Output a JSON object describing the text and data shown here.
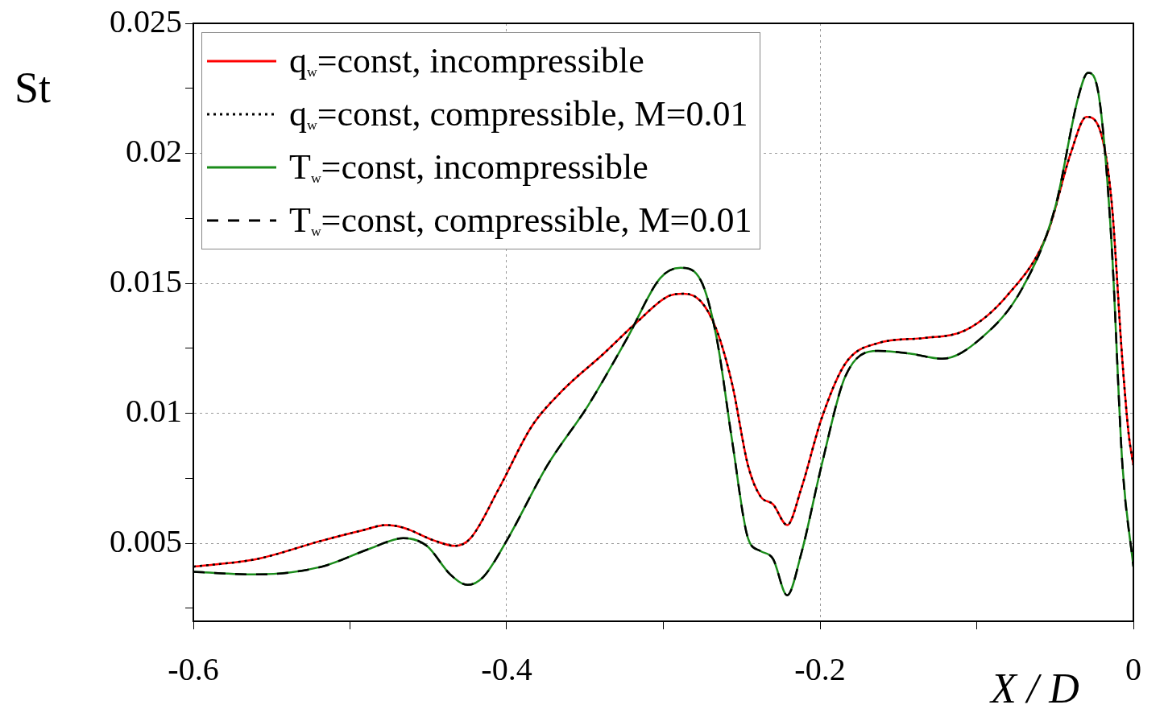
{
  "chart_data": {
    "type": "line",
    "xlabel": "X / D",
    "ylabel": "St",
    "xlim": [
      -0.6,
      0
    ],
    "ylim": [
      0.002,
      0.025
    ],
    "xticks": [
      -0.6,
      {
        "value": -0.5,
        "label": null
      },
      -0.4,
      {
        "value": -0.3,
        "label": null
      },
      -0.2,
      {
        "value": -0.1,
        "label": null
      },
      {
        "value": 0,
        "label": "0"
      }
    ],
    "yticks": [
      {
        "value": 0.0025,
        "label": null
      },
      0.005,
      {
        "value": 0.0075,
        "label": null
      },
      0.01,
      {
        "value": 0.0125,
        "label": null
      },
      0.015,
      {
        "value": 0.0175,
        "label": null
      },
      0.02,
      {
        "value": 0.0225,
        "label": null
      },
      0.025
    ],
    "grid": true,
    "legend": "top left",
    "x": [
      -0.6,
      -0.559,
      -0.518,
      -0.492,
      -0.477,
      -0.466,
      -0.446,
      -0.433,
      -0.423,
      -0.405,
      -0.384,
      -0.364,
      -0.338,
      -0.317,
      -0.297,
      -0.287,
      -0.276,
      -0.266,
      -0.256,
      -0.246,
      -0.238,
      -0.23,
      -0.221,
      -0.212,
      -0.199,
      -0.184,
      -0.163,
      -0.133,
      -0.107,
      -0.081,
      -0.055,
      -0.04,
      -0.03,
      -0.022,
      -0.014,
      -0.007,
      -0.003,
      0
    ],
    "series": [
      {
        "name": "q$_{w}$=const, incompressible",
        "color": "#ff0000",
        "line_style": "solid",
        "values": [
          0.0041,
          0.0044,
          0.0051,
          0.0055,
          0.0057,
          0.0056,
          0.0051,
          0.0049,
          0.0052,
          0.0071,
          0.0095,
          0.0109,
          0.0123,
          0.0135,
          0.0145,
          0.0146,
          0.0143,
          0.0132,
          0.0111,
          0.008,
          0.0068,
          0.0065,
          0.0057,
          0.0071,
          0.0098,
          0.0119,
          0.0127,
          0.0129,
          0.0132,
          0.0145,
          0.0169,
          0.02,
          0.0214,
          0.021,
          0.0182,
          0.012,
          0.0092,
          0.008
        ]
      },
      {
        "name": "q$_{w}$=const, compressible, M=0.01",
        "color": "#000000",
        "line_style": "dotted",
        "values": [
          0.0041,
          0.0044,
          0.0051,
          0.0055,
          0.0057,
          0.0056,
          0.0051,
          0.0049,
          0.0052,
          0.0071,
          0.0095,
          0.0109,
          0.0123,
          0.0135,
          0.0145,
          0.0146,
          0.0143,
          0.0132,
          0.0111,
          0.008,
          0.0068,
          0.0065,
          0.0057,
          0.0071,
          0.0098,
          0.0119,
          0.0127,
          0.0129,
          0.0132,
          0.0145,
          0.0169,
          0.02,
          0.0214,
          0.021,
          0.0182,
          0.012,
          0.0092,
          0.008
        ]
      },
      {
        "name": "T$_{w}$=const, incompressible",
        "color": "#1a8c1a",
        "line_style": "solid",
        "x": [
          -0.6,
          -0.559,
          -0.518,
          -0.487,
          -0.466,
          -0.451,
          -0.436,
          -0.425,
          -0.415,
          -0.4,
          -0.374,
          -0.348,
          -0.323,
          -0.302,
          -0.289,
          -0.276,
          -0.266,
          -0.256,
          -0.246,
          -0.238,
          -0.23,
          -0.221,
          -0.212,
          -0.199,
          -0.184,
          -0.163,
          -0.143,
          -0.122,
          -0.097,
          -0.071,
          -0.05,
          -0.035,
          -0.029,
          -0.022,
          -0.014,
          -0.007,
          0
        ],
        "values": [
          0.0039,
          0.0038,
          0.0041,
          0.0048,
          0.0052,
          0.0049,
          0.0038,
          0.0034,
          0.0037,
          0.0051,
          0.008,
          0.0103,
          0.0129,
          0.0152,
          0.0156,
          0.0151,
          0.0129,
          0.0089,
          0.0052,
          0.0047,
          0.0044,
          0.003,
          0.0046,
          0.008,
          0.0114,
          0.0124,
          0.0123,
          0.0121,
          0.0129,
          0.0148,
          0.0179,
          0.0222,
          0.0231,
          0.0222,
          0.0166,
          0.008,
          0.0041
        ]
      },
      {
        "name": "T$_{w}$=const, compressible, M=0.01",
        "color": "#000000",
        "line_style": "dashed",
        "x": [
          -0.6,
          -0.559,
          -0.518,
          -0.487,
          -0.466,
          -0.451,
          -0.436,
          -0.425,
          -0.415,
          -0.4,
          -0.374,
          -0.348,
          -0.323,
          -0.302,
          -0.289,
          -0.276,
          -0.266,
          -0.256,
          -0.246,
          -0.238,
          -0.23,
          -0.221,
          -0.212,
          -0.199,
          -0.184,
          -0.163,
          -0.143,
          -0.122,
          -0.097,
          -0.071,
          -0.05,
          -0.035,
          -0.029,
          -0.022,
          -0.014,
          -0.007,
          0
        ],
        "values": [
          0.0039,
          0.0038,
          0.0041,
          0.0048,
          0.0052,
          0.0049,
          0.0038,
          0.0034,
          0.0037,
          0.0051,
          0.008,
          0.0103,
          0.0129,
          0.0152,
          0.0156,
          0.0151,
          0.0129,
          0.0089,
          0.0052,
          0.0047,
          0.0044,
          0.003,
          0.0046,
          0.008,
          0.0114,
          0.0124,
          0.0123,
          0.0121,
          0.0129,
          0.0148,
          0.0179,
          0.0222,
          0.0231,
          0.0222,
          0.0166,
          0.008,
          0.0041
        ]
      }
    ]
  }
}
